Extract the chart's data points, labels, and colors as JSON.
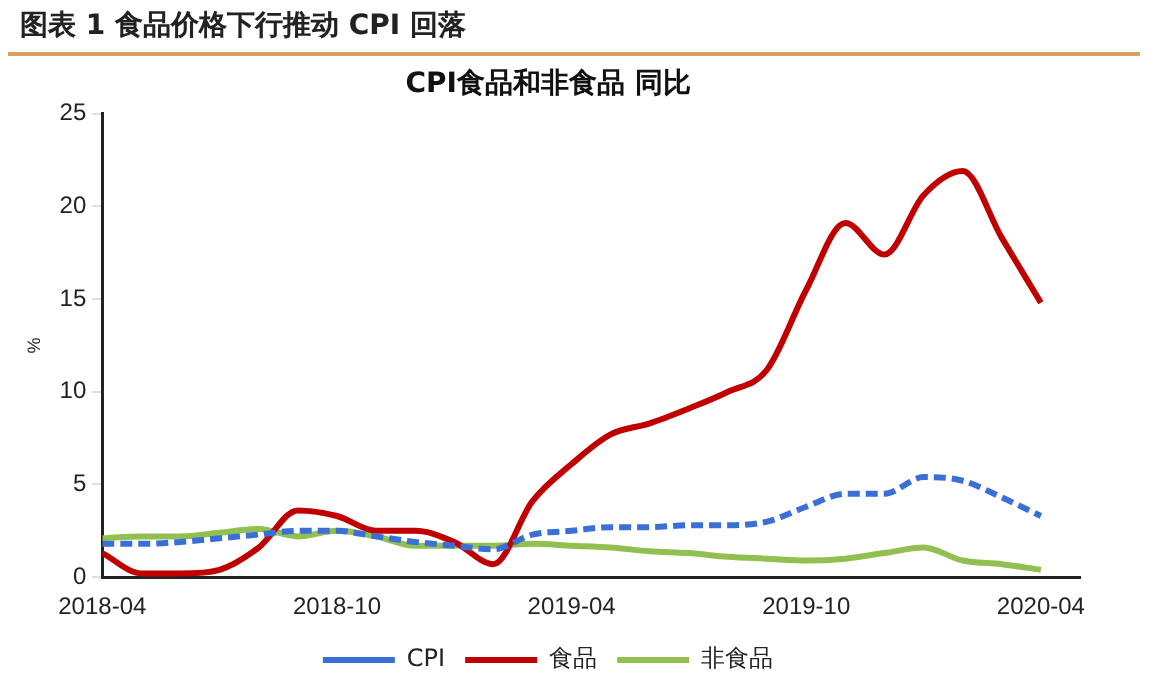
{
  "chart_data": {
    "type": "line",
    "title": "图表 1 食品价格下行推动 CPI 回落",
    "subtitle": "CPI食品和非食品 同比",
    "ylabel": "%",
    "x": [
      "2018-04",
      "2018-05",
      "2018-06",
      "2018-07",
      "2018-08",
      "2018-09",
      "2018-10",
      "2018-11",
      "2018-12",
      "2019-01",
      "2019-02",
      "2019-03",
      "2019-04",
      "2019-05",
      "2019-06",
      "2019-07",
      "2019-08",
      "2019-09",
      "2019-10",
      "2019-11",
      "2019-12",
      "2020-01",
      "2020-02",
      "2020-03",
      "2020-04"
    ],
    "series": [
      {
        "name": "CPI",
        "color": "#3a6fd8",
        "line_style": "dashed",
        "values": [
          1.8,
          1.8,
          1.9,
          2.1,
          2.3,
          2.5,
          2.5,
          2.2,
          1.9,
          1.7,
          1.5,
          2.3,
          2.5,
          2.7,
          2.7,
          2.8,
          2.8,
          3.0,
          3.8,
          4.5,
          4.5,
          5.4,
          5.2,
          4.3,
          3.3
        ]
      },
      {
        "name": "食品",
        "color": "#c00000",
        "line_style": "solid",
        "values": [
          1.3,
          0.2,
          0.2,
          0.4,
          1.6,
          3.6,
          3.3,
          2.5,
          2.5,
          1.9,
          0.7,
          4.1,
          6.1,
          7.7,
          8.3,
          9.1,
          10.0,
          11.2,
          15.5,
          19.1,
          17.4,
          20.6,
          21.9,
          18.3,
          14.8
        ]
      },
      {
        "name": "非食品",
        "color": "#92c050",
        "line_style": "solid",
        "values": [
          2.1,
          2.2,
          2.2,
          2.4,
          2.6,
          2.2,
          2.5,
          2.2,
          1.7,
          1.7,
          1.7,
          1.8,
          1.7,
          1.6,
          1.4,
          1.3,
          1.1,
          1.0,
          0.9,
          1.0,
          1.3,
          1.6,
          0.9,
          0.7,
          0.4
        ]
      }
    ],
    "xlim": [
      "2018-04",
      "2020-05"
    ],
    "xticks": [
      "2018-04",
      "2018-10",
      "2019-04",
      "2019-10",
      "2020-04"
    ],
    "ylim": [
      0,
      25
    ],
    "yticks": [
      0,
      5,
      10,
      15,
      20,
      25
    ],
    "grid": false,
    "legend": "bottom",
    "marker": "none"
  }
}
